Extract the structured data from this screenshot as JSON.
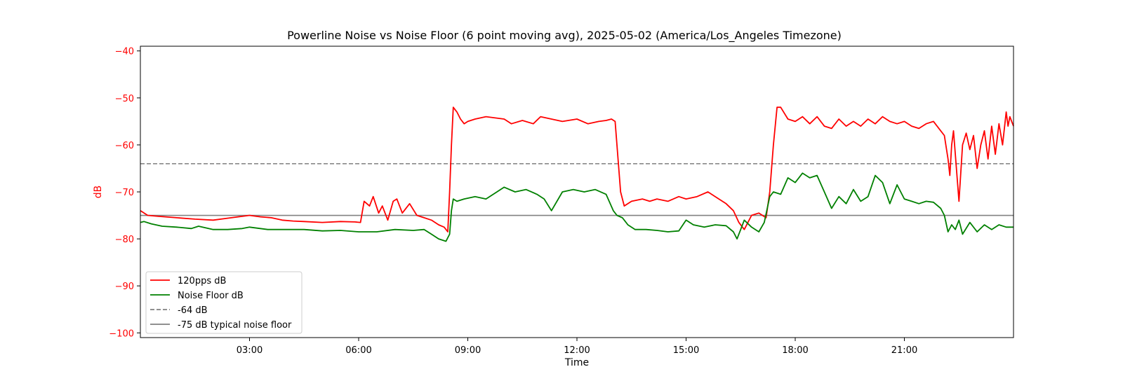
{
  "colors": {
    "series1": "#ff0000",
    "series2": "#008000",
    "ref_dashed": "#808080",
    "ref_solid": "#808080",
    "ylabel": "#ff0000"
  },
  "chart_data": {
    "type": "line",
    "title": "Powerline Noise vs Noise Floor (6 point moving avg), 2025-05-02 (America/Los_Angeles Timezone)",
    "xlabel": "Time",
    "ylabel": "dB",
    "x_unit": "hours since 00:00 on 2025-05-02",
    "xlim": [
      0,
      24
    ],
    "ylim": [
      -101,
      -39
    ],
    "x_ticks": [
      {
        "value": 3,
        "label": "03:00"
      },
      {
        "value": 6,
        "label": "06:00"
      },
      {
        "value": 9,
        "label": "09:00"
      },
      {
        "value": 12,
        "label": "12:00"
      },
      {
        "value": 15,
        "label": "15:00"
      },
      {
        "value": 18,
        "label": "18:00"
      },
      {
        "value": 21,
        "label": "21:00"
      }
    ],
    "y_ticks": [
      {
        "value": -40,
        "label": "−40"
      },
      {
        "value": -50,
        "label": "−50"
      },
      {
        "value": -60,
        "label": "−60"
      },
      {
        "value": -70,
        "label": "−70"
      },
      {
        "value": -80,
        "label": "−80"
      },
      {
        "value": -90,
        "label": "−90"
      },
      {
        "value": -100,
        "label": "−100"
      }
    ],
    "grid": false,
    "legend_position": "lower-left",
    "series": [
      {
        "name": "120pps dB",
        "color": "#ff0000",
        "x": [
          0.0,
          0.2,
          0.5,
          1.0,
          1.5,
          2.0,
          2.5,
          2.8,
          3.0,
          3.3,
          3.6,
          3.9,
          4.2,
          4.5,
          5.0,
          5.5,
          5.9,
          6.05,
          6.15,
          6.3,
          6.4,
          6.55,
          6.65,
          6.8,
          6.95,
          7.05,
          7.2,
          7.4,
          7.6,
          7.8,
          8.0,
          8.2,
          8.35,
          8.45,
          8.5,
          8.55,
          8.6,
          8.7,
          8.8,
          8.9,
          9.0,
          9.2,
          9.5,
          10.0,
          10.2,
          10.5,
          10.8,
          11.0,
          11.3,
          11.6,
          12.0,
          12.3,
          12.6,
          12.8,
          12.95,
          13.05,
          13.2,
          13.3,
          13.5,
          13.8,
          14.0,
          14.2,
          14.5,
          14.8,
          15.0,
          15.3,
          15.6,
          15.9,
          16.1,
          16.3,
          16.45,
          16.6,
          16.8,
          17.0,
          17.2,
          17.3,
          17.4,
          17.5,
          17.6,
          17.8,
          18.0,
          18.2,
          18.4,
          18.6,
          18.8,
          19.0,
          19.2,
          19.4,
          19.6,
          19.8,
          20.0,
          20.2,
          20.4,
          20.6,
          20.8,
          21.0,
          21.2,
          21.4,
          21.6,
          21.8,
          22.0,
          22.1,
          22.2,
          22.25,
          22.3,
          22.35,
          22.4,
          22.45,
          22.5,
          22.6,
          22.7,
          22.8,
          22.9,
          23.0,
          23.1,
          23.2,
          23.3,
          23.4,
          23.5,
          23.6,
          23.7,
          23.8,
          23.85,
          23.9,
          23.95,
          24.0
        ],
        "y": [
          -74,
          -75,
          -75.2,
          -75.5,
          -75.8,
          -76,
          -75.5,
          -75.2,
          -75,
          -75.3,
          -75.5,
          -76,
          -76.2,
          -76.3,
          -76.5,
          -76.3,
          -76.4,
          -76.5,
          -72,
          -73,
          -71,
          -74.5,
          -73,
          -76,
          -72,
          -71.5,
          -74.5,
          -72.5,
          -75,
          -75.5,
          -76,
          -77,
          -77.5,
          -78.5,
          -70,
          -60,
          -52,
          -53,
          -54.5,
          -55.5,
          -55,
          -54.5,
          -54,
          -54.5,
          -55.5,
          -54.8,
          -55.5,
          -54,
          -54.5,
          -55,
          -54.5,
          -55.5,
          -55,
          -54.8,
          -54.5,
          -55,
          -70,
          -73,
          -72,
          -71.5,
          -72,
          -71.5,
          -72,
          -71,
          -71.5,
          -71,
          -70,
          -71.5,
          -72.5,
          -74,
          -76.5,
          -78,
          -75,
          -74.5,
          -75.5,
          -70,
          -60,
          -52,
          -52,
          -54.5,
          -55,
          -54,
          -55.5,
          -54,
          -56,
          -56.5,
          -54.5,
          -56,
          -55,
          -56,
          -54.5,
          -55.5,
          -54,
          -55,
          -55.5,
          -55,
          -56,
          -56.5,
          -55.5,
          -55,
          -57,
          -58,
          -63,
          -66.5,
          -60,
          -57,
          -62,
          -67,
          -72,
          -60,
          -57.5,
          -61,
          -58,
          -65,
          -60,
          -57,
          -63,
          -56,
          -62,
          -55.5,
          -60,
          -53,
          -56,
          -54,
          -55,
          -56
        ]
      },
      {
        "name": "Noise Floor dB",
        "color": "#008000",
        "x": [
          0.0,
          0.1,
          0.3,
          0.6,
          1.0,
          1.4,
          1.6,
          2.0,
          2.4,
          2.8,
          3.0,
          3.5,
          4.0,
          4.5,
          5.0,
          5.5,
          6.0,
          6.5,
          7.0,
          7.5,
          7.8,
          8.0,
          8.2,
          8.4,
          8.5,
          8.55,
          8.6,
          8.7,
          8.9,
          9.2,
          9.5,
          9.8,
          10.0,
          10.3,
          10.6,
          10.9,
          11.1,
          11.3,
          11.6,
          11.9,
          12.2,
          12.5,
          12.8,
          13.0,
          13.1,
          13.25,
          13.4,
          13.6,
          13.9,
          14.2,
          14.5,
          14.8,
          15.0,
          15.2,
          15.5,
          15.8,
          16.1,
          16.3,
          16.4,
          16.5,
          16.6,
          16.8,
          17.0,
          17.15,
          17.3,
          17.4,
          17.6,
          17.8,
          18.0,
          18.2,
          18.4,
          18.6,
          18.8,
          19.0,
          19.2,
          19.4,
          19.6,
          19.8,
          20.0,
          20.2,
          20.4,
          20.6,
          20.8,
          21.0,
          21.2,
          21.4,
          21.6,
          21.8,
          22.0,
          22.1,
          22.2,
          22.3,
          22.4,
          22.5,
          22.6,
          22.8,
          23.0,
          23.2,
          23.4,
          23.6,
          23.8,
          24.0
        ],
        "y": [
          -76.5,
          -76.3,
          -76.8,
          -77.3,
          -77.5,
          -77.8,
          -77.3,
          -78,
          -78,
          -77.8,
          -77.5,
          -78,
          -78,
          -78,
          -78.3,
          -78.2,
          -78.5,
          -78.5,
          -78,
          -78.2,
          -78,
          -79,
          -80,
          -80.5,
          -79,
          -74,
          -71.5,
          -72,
          -71.5,
          -71,
          -71.5,
          -70,
          -69,
          -70,
          -69.5,
          -70.5,
          -71.5,
          -74,
          -70,
          -69.5,
          -70,
          -69.5,
          -70.5,
          -74,
          -75,
          -75.5,
          -77,
          -78,
          -78,
          -78.2,
          -78.5,
          -78.3,
          -76,
          -77,
          -77.5,
          -77,
          -77.2,
          -78.5,
          -80,
          -78,
          -76,
          -77.5,
          -78.5,
          -76.5,
          -71,
          -70,
          -70.5,
          -67,
          -68,
          -66,
          -67,
          -66.5,
          -70,
          -73.5,
          -71,
          -72.5,
          -69.5,
          -72,
          -71,
          -66.5,
          -68,
          -72.5,
          -68.5,
          -71.5,
          -72,
          -72.5,
          -72,
          -72.2,
          -73.5,
          -75,
          -78.5,
          -77,
          -78,
          -76,
          -79,
          -76.5,
          -78.5,
          -77,
          -78,
          -77,
          -77.5,
          -77.5
        ]
      }
    ],
    "reference_lines": [
      {
        "name": "-64 dB",
        "y": -64,
        "style": "dashed",
        "color": "#808080"
      },
      {
        "name": "-75 dB typical noise floor",
        "y": -75,
        "style": "solid",
        "color": "#808080"
      }
    ]
  }
}
